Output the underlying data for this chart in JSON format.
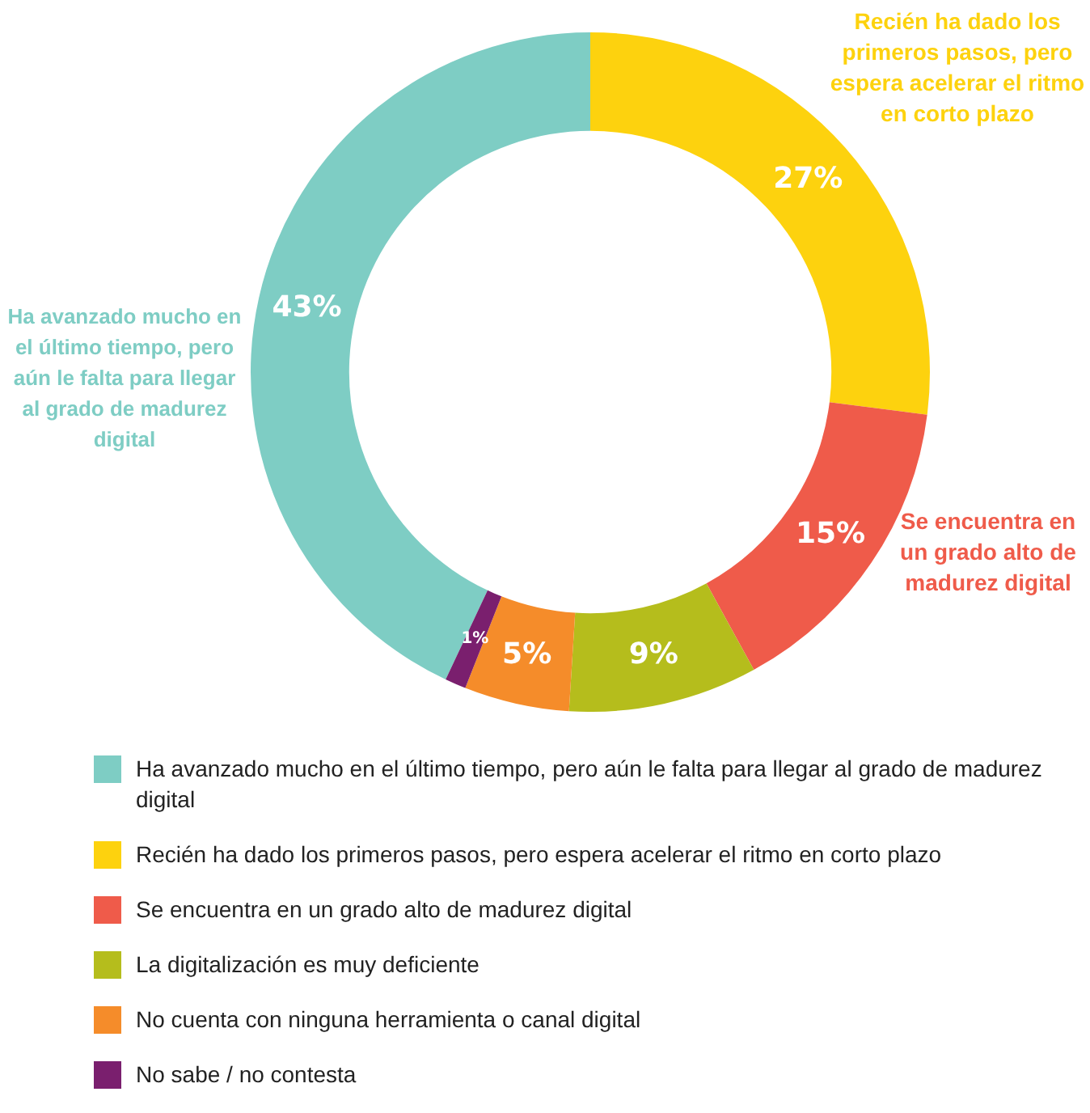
{
  "chart_data": {
    "type": "donut",
    "categories": [
      "Ha avanzado mucho en el último tiempo, pero aún le falta para llegar al grado de madurez digital",
      "Recién ha dado los primeros pasos, pero espera acelerar el ritmo en corto plazo",
      "Se encuentra en un grado alto de madurez digital",
      "La digitalización es muy deficiente",
      "No cuenta con ninguna herramienta o canal digital",
      "No sabe / no contesta"
    ],
    "values": [
      43,
      27,
      15,
      9,
      5,
      1
    ],
    "colors": [
      "#7ecdc4",
      "#fdd20e",
      "#ef5b4a",
      "#b5bd1c",
      "#f58c2a",
      "#7a1f6e"
    ],
    "value_labels": [
      "43%",
      "27%",
      "15%",
      "9%",
      "5%",
      "1%"
    ],
    "annotations": [
      "Ha avanzado mucho en el último tiempo, pero aún le falta para llegar al grado de madurez digital",
      "Recién ha dado los primeros pasos, pero espera acelerar el ritmo en corto plazo",
      "Se encuentra en un grado alto de madurez digital"
    ],
    "legend": "bottom"
  }
}
